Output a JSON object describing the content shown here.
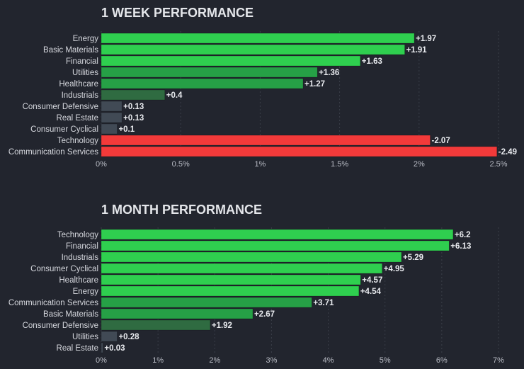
{
  "colors": {
    "background": "#22252e",
    "text": "#d6d8de",
    "value_text": "#e9ebef",
    "tick_text": "#b9bcc5",
    "title": "#e4e6ea",
    "grid": "#3a3e48",
    "positive_strong": "#2fcf4f",
    "positive_mid": "#26a046",
    "positive_weak": "#2f6b41",
    "neutral": "#414a55",
    "negative": "#f23a3a"
  },
  "chart_data": [
    {
      "type": "bar",
      "orientation": "horizontal",
      "title": "1 WEEK PERFORMANCE",
      "categories": [
        "Energy",
        "Basic Materials",
        "Financial",
        "Utilities",
        "Healthcare",
        "Industrials",
        "Consumer Defensive",
        "Real Estate",
        "Consumer Cyclical",
        "Technology",
        "Communication Services"
      ],
      "values": [
        1.97,
        1.91,
        1.63,
        1.36,
        1.27,
        0.4,
        0.13,
        0.13,
        0.1,
        -2.07,
        -2.49
      ],
      "value_labels": [
        "+1.97",
        "+1.91",
        "+1.63",
        "+1.36",
        "+1.27",
        "+0.4",
        "+0.13",
        "+0.13",
        "+0.1",
        "-2.07",
        "-2.49"
      ],
      "xlim": [
        0,
        2.5
      ],
      "xticks": [
        "0%",
        "0.5%",
        "1%",
        "1.5%",
        "2%",
        "2.5%"
      ],
      "xlabel": "",
      "ylabel": "",
      "grid": true,
      "note": "bar length = absolute change in %; red = negative"
    },
    {
      "type": "bar",
      "orientation": "horizontal",
      "title": "1 MONTH PERFORMANCE",
      "categories": [
        "Technology",
        "Financial",
        "Industrials",
        "Consumer Cyclical",
        "Healthcare",
        "Energy",
        "Communication Services",
        "Basic Materials",
        "Consumer Defensive",
        "Utilities",
        "Real Estate"
      ],
      "values": [
        6.2,
        6.13,
        5.29,
        4.95,
        4.57,
        4.54,
        3.71,
        2.67,
        1.92,
        0.28,
        0.03
      ],
      "value_labels": [
        "+6.2",
        "+6.13",
        "+5.29",
        "+4.95",
        "+4.57",
        "+4.54",
        "+3.71",
        "+2.67",
        "+1.92",
        "+0.28",
        "+0.03"
      ],
      "xlim": [
        0,
        7
      ],
      "xticks": [
        "0%",
        "1%",
        "2%",
        "3%",
        "4%",
        "5%",
        "6%",
        "7%"
      ],
      "xlabel": "",
      "ylabel": "",
      "grid": true,
      "note": "bar length = absolute change in %"
    }
  ]
}
